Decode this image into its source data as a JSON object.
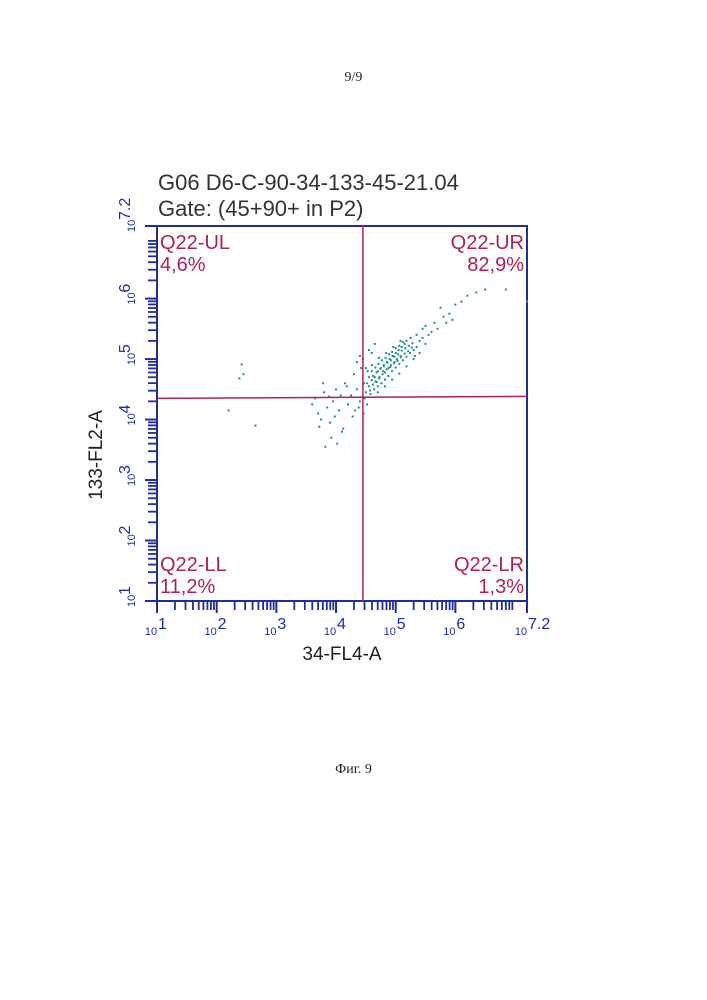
{
  "page": {
    "number": "9/9",
    "caption": "Фиг. 9"
  },
  "chart_data": {
    "type": "scatter",
    "title": "G06 D6-C-90-34-133-45-21.04",
    "subtitle": "Gate: (45+90+ in P2)",
    "xlabel": "34-FL4-A",
    "ylabel": "133-FL2-A",
    "log_scale": true,
    "xlim": [
      1,
      7.2
    ],
    "ylim": [
      1,
      7.2
    ],
    "x_ticks": [
      {
        "v": 1,
        "label": "10",
        "exp": "1"
      },
      {
        "v": 2,
        "label": "10",
        "exp": "2"
      },
      {
        "v": 3,
        "label": "10",
        "exp": "3"
      },
      {
        "v": 4,
        "label": "10",
        "exp": "4"
      },
      {
        "v": 5,
        "label": "10",
        "exp": "5"
      },
      {
        "v": 6,
        "label": "10",
        "exp": "6"
      },
      {
        "v": 7.2,
        "label": "10",
        "exp": "7.2"
      }
    ],
    "y_ticks": [
      {
        "v": 1,
        "label": "10",
        "exp": "1"
      },
      {
        "v": 2,
        "label": "10",
        "exp": "2"
      },
      {
        "v": 3,
        "label": "10",
        "exp": "3"
      },
      {
        "v": 4,
        "label": "10",
        "exp": "4"
      },
      {
        "v": 5,
        "label": "10",
        "exp": "5"
      },
      {
        "v": 6,
        "label": "10",
        "exp": "6"
      },
      {
        "v": 7.2,
        "label": "10",
        "exp": "7.2"
      }
    ],
    "gate": {
      "x": 4.45,
      "y": 4.35
    },
    "quadrants": [
      {
        "name": "Q22-UL",
        "value": "4,6%",
        "position": "top-left"
      },
      {
        "name": "Q22-UR",
        "value": "82,9%",
        "position": "top-right"
      },
      {
        "name": "Q22-LL",
        "value": "11,2%",
        "position": "bottom-left"
      },
      {
        "name": "Q22-LR",
        "value": "1,3%",
        "position": "bottom-right"
      }
    ],
    "grid": false,
    "colors": {
      "axis": "#1f2f9a",
      "quadrant": "#b0205a",
      "points": "#1f8f8a",
      "title": "#333333"
    },
    "scatter_points": [
      [
        2.42,
        4.91
      ],
      [
        2.45,
        4.75
      ],
      [
        2.38,
        4.68
      ],
      [
        2.2,
        4.15
      ],
      [
        2.65,
        3.9
      ],
      [
        3.6,
        4.25
      ],
      [
        3.65,
        4.35
      ],
      [
        3.7,
        4.1
      ],
      [
        3.75,
        4.0
      ],
      [
        3.8,
        4.45
      ],
      [
        3.85,
        4.2
      ],
      [
        3.9,
        3.95
      ],
      [
        3.95,
        4.3
      ],
      [
        4.0,
        4.5
      ],
      [
        4.05,
        4.15
      ],
      [
        4.1,
        3.8
      ],
      [
        3.98,
        4.05
      ],
      [
        3.88,
        4.38
      ],
      [
        3.78,
        4.6
      ],
      [
        3.92,
        3.7
      ],
      [
        4.02,
        3.6
      ],
      [
        3.82,
        3.55
      ],
      [
        4.12,
        3.85
      ],
      [
        3.72,
        3.88
      ],
      [
        4.08,
        4.4
      ],
      [
        4.2,
        4.25
      ],
      [
        4.25,
        4.4
      ],
      [
        4.15,
        4.6
      ],
      [
        4.3,
        4.75
      ],
      [
        4.35,
        4.5
      ],
      [
        4.4,
        4.3
      ],
      [
        4.42,
        4.85
      ],
      [
        4.45,
        5.0
      ],
      [
        4.38,
        4.2
      ],
      [
        4.28,
        4.05
      ],
      [
        4.32,
        4.15
      ],
      [
        4.18,
        4.55
      ],
      [
        4.5,
        4.45
      ],
      [
        4.55,
        4.55
      ],
      [
        4.6,
        4.65
      ],
      [
        4.65,
        4.7
      ],
      [
        4.7,
        4.8
      ],
      [
        4.75,
        4.85
      ],
      [
        4.8,
        4.9
      ],
      [
        4.85,
        4.95
      ],
      [
        4.9,
        5.0
      ],
      [
        4.95,
        5.05
      ],
      [
        5.0,
        5.1
      ],
      [
        5.05,
        5.15
      ],
      [
        5.1,
        5.2
      ],
      [
        5.15,
        5.25
      ],
      [
        4.52,
        4.6
      ],
      [
        4.57,
        4.48
      ],
      [
        4.62,
        4.58
      ],
      [
        4.68,
        4.62
      ],
      [
        4.72,
        4.68
      ],
      [
        4.78,
        4.75
      ],
      [
        4.82,
        4.78
      ],
      [
        4.88,
        4.85
      ],
      [
        4.92,
        4.9
      ],
      [
        4.98,
        4.95
      ],
      [
        5.02,
        5.0
      ],
      [
        5.08,
        5.05
      ],
      [
        4.55,
        4.7
      ],
      [
        4.6,
        4.8
      ],
      [
        4.66,
        4.86
      ],
      [
        4.71,
        4.92
      ],
      [
        4.77,
        4.98
      ],
      [
        4.83,
        5.02
      ],
      [
        4.89,
        5.08
      ],
      [
        4.94,
        5.12
      ],
      [
        5.0,
        5.18
      ],
      [
        5.06,
        5.22
      ],
      [
        5.12,
        5.28
      ],
      [
        5.18,
        5.3
      ],
      [
        4.58,
        4.42
      ],
      [
        4.64,
        4.5
      ],
      [
        4.7,
        4.55
      ],
      [
        4.76,
        4.6
      ],
      [
        4.82,
        4.66
      ],
      [
        4.88,
        4.72
      ],
      [
        4.94,
        4.8
      ],
      [
        5.0,
        4.86
      ],
      [
        5.06,
        4.92
      ],
      [
        5.12,
        4.98
      ],
      [
        5.18,
        5.04
      ],
      [
        5.24,
        5.1
      ],
      [
        4.62,
        4.72
      ],
      [
        4.68,
        4.78
      ],
      [
        4.74,
        4.84
      ],
      [
        4.8,
        4.88
      ],
      [
        4.86,
        4.94
      ],
      [
        4.92,
        4.98
      ],
      [
        4.98,
        5.04
      ],
      [
        5.04,
        5.08
      ],
      [
        5.1,
        5.14
      ],
      [
        5.16,
        5.18
      ],
      [
        5.22,
        5.22
      ],
      [
        5.28,
        5.26
      ],
      [
        4.66,
        4.63
      ],
      [
        4.73,
        4.7
      ],
      [
        4.79,
        4.8
      ],
      [
        4.85,
        4.83
      ],
      [
        4.91,
        4.87
      ],
      [
        4.97,
        4.93
      ],
      [
        5.03,
        4.97
      ],
      [
        5.09,
        5.03
      ],
      [
        5.15,
        5.09
      ],
      [
        5.21,
        5.13
      ],
      [
        5.27,
        5.19
      ],
      [
        4.53,
        4.8
      ],
      [
        4.6,
        4.9
      ],
      [
        4.72,
        5.02
      ],
      [
        4.84,
        5.1
      ],
      [
        4.96,
        5.2
      ],
      [
        5.08,
        5.3
      ],
      [
        4.7,
        4.45
      ],
      [
        4.82,
        4.55
      ],
      [
        4.94,
        4.66
      ],
      [
        5.06,
        4.76
      ],
      [
        5.18,
        4.88
      ],
      [
        5.3,
        5.0
      ],
      [
        5.3,
        5.15
      ],
      [
        5.35,
        5.2
      ],
      [
        5.4,
        5.3
      ],
      [
        5.45,
        5.35
      ],
      [
        5.5,
        5.25
      ],
      [
        5.35,
        5.4
      ],
      [
        5.25,
        5.35
      ],
      [
        5.4,
        5.1
      ],
      [
        5.55,
        5.4
      ],
      [
        5.6,
        5.45
      ],
      [
        5.45,
        5.5
      ],
      [
        5.32,
        5.05
      ],
      [
        5.5,
        5.55
      ],
      [
        5.65,
        5.6
      ],
      [
        5.7,
        5.5
      ],
      [
        5.8,
        5.7
      ],
      [
        5.9,
        5.75
      ],
      [
        6.0,
        5.9
      ],
      [
        5.85,
        5.6
      ],
      [
        5.95,
        5.65
      ],
      [
        6.1,
        5.95
      ],
      [
        5.75,
        5.85
      ],
      [
        6.2,
        6.05
      ],
      [
        6.35,
        6.1
      ],
      [
        6.5,
        6.15
      ],
      [
        6.85,
        6.15
      ],
      [
        7.2,
        5.95
      ],
      [
        4.47,
        4.6
      ],
      [
        4.5,
        4.85
      ],
      [
        4.48,
        4.35
      ],
      [
        4.52,
        4.25
      ],
      [
        4.46,
        4.1
      ],
      [
        4.6,
        5.1
      ],
      [
        4.65,
        5.25
      ],
      [
        4.55,
        5.15
      ],
      [
        4.4,
        5.05
      ],
      [
        4.35,
        4.95
      ]
    ]
  }
}
